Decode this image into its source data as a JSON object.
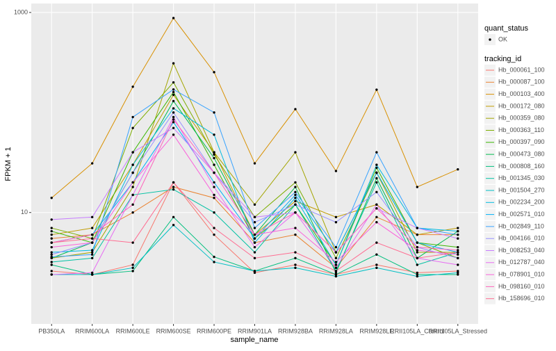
{
  "chart_data": {
    "type": "line",
    "x_label": "sample_name",
    "y_label": "FPKM + 1",
    "log_y": true,
    "grid": true,
    "categories": [
      "PB350LA",
      "RRIM600LA",
      "RRIM600LE",
      "RRIM600SE",
      "RRIM600PE",
      "RRIM901LA",
      "RRIM928BA",
      "RRIM928LA",
      "RRIM928LE",
      "RRII105LA_Control",
      "RRII105LA_Stressed"
    ],
    "ylim": [
      0.77,
      1230
    ],
    "yticks": [
      10,
      1000
    ],
    "shape_legend_title": "quant_status",
    "shape_legend_items": [
      "OK"
    ],
    "legend_title": "tracking_id",
    "series": [
      {
        "name": "Hb_000061_100",
        "color": "#F8766D",
        "values": [
          2.6,
          2.4,
          3.0,
          20,
          6,
          2.5,
          3,
          2.4,
          3,
          2.5,
          2.6
        ]
      },
      {
        "name": "Hb_000087_100",
        "color": "#EA8331",
        "values": [
          5.5,
          6,
          10,
          18,
          14,
          5,
          6,
          2.8,
          9,
          6,
          6
        ]
      },
      {
        "name": "Hb_000103_400",
        "color": "#D89000",
        "values": [
          14,
          31,
          181,
          879,
          253,
          31,
          108,
          26,
          169,
          18,
          27
        ]
      },
      {
        "name": "Hb_000172_080",
        "color": "#C09B00",
        "values": [
          6,
          7,
          30,
          150,
          40,
          6,
          13,
          9,
          12,
          6,
          7
        ]
      },
      {
        "name": "Hb_000359_080",
        "color": "#A3A500",
        "values": [
          3.5,
          4,
          18,
          310,
          40,
          12,
          40,
          4,
          25,
          4,
          4
        ]
      },
      {
        "name": "Hb_000363_110",
        "color": "#7CAE00",
        "values": [
          7,
          5.5,
          70,
          200,
          38,
          9,
          20,
          3.5,
          25,
          5,
          3.5
        ]
      },
      {
        "name": "Hb_000397_090",
        "color": "#39B600",
        "values": [
          6.5,
          5,
          40,
          160,
          30,
          5.5,
          12,
          3,
          28,
          5,
          4.5
        ]
      },
      {
        "name": "Hb_000473_080",
        "color": "#00BB4E",
        "values": [
          3.5,
          5,
          25,
          130,
          35,
          6,
          18,
          2.5,
          22,
          3.5,
          6.5
        ]
      },
      {
        "name": "Hb_000808_160",
        "color": "#00BF7D",
        "values": [
          3,
          2.4,
          2.6,
          9,
          3.6,
          2.6,
          3.5,
          2.4,
          3.8,
          2.4,
          2.4
        ]
      },
      {
        "name": "Hb_001345_030",
        "color": "#00C1A3",
        "values": [
          3.2,
          3.5,
          15,
          17,
          10,
          4,
          12,
          2.6,
          20,
          3,
          4
        ]
      },
      {
        "name": "Hb_001504_270",
        "color": "#00BFC4",
        "values": [
          2.4,
          2.4,
          2.8,
          7.5,
          3.2,
          2.6,
          2.8,
          2.3,
          2.8,
          2.3,
          2.5
        ]
      },
      {
        "name": "Hb_002234_200",
        "color": "#00BAE0",
        "values": [
          4,
          4.2,
          30,
          110,
          60,
          5,
          14,
          3,
          30,
          7,
          6.5
        ]
      },
      {
        "name": "Hb_002571_010",
        "color": "#00B0F6",
        "values": [
          5,
          6,
          20,
          80,
          20,
          5.5,
          15,
          4,
          25,
          5,
          4
        ]
      },
      {
        "name": "Hb_002849_110",
        "color": "#35A2FF",
        "values": [
          3.6,
          3.8,
          90,
          170,
          100,
          7,
          16,
          4.5,
          40,
          7,
          6
        ]
      },
      {
        "name": "Hb_004166_010",
        "color": "#9590FF",
        "values": [
          3.8,
          5,
          25,
          100,
          25,
          8,
          12,
          8,
          16,
          4.5,
          3.5
        ]
      },
      {
        "name": "Hb_008253_040",
        "color": "#C77CFF",
        "values": [
          8.5,
          9,
          40,
          70,
          25,
          9,
          10,
          4,
          11,
          7,
          5.5
        ]
      },
      {
        "name": "Hb_012787_040",
        "color": "#E76BF3",
        "values": [
          2.4,
          2.5,
          15,
          90,
          18,
          4.5,
          10,
          2.8,
          12,
          3.5,
          3
        ]
      },
      {
        "name": "Hb_078901_010",
        "color": "#FA62DB",
        "values": [
          4.5,
          5,
          20,
          60,
          15,
          6,
          7,
          3.2,
          8,
          4.2,
          3.8
        ]
      },
      {
        "name": "Hb_098160_010",
        "color": "#FF62BC",
        "values": [
          5,
          6,
          12,
          85,
          25,
          6,
          10,
          4,
          11,
          4.5,
          4.2
        ]
      },
      {
        "name": "Hb_158696_010",
        "color": "#FF6C91",
        "values": [
          5,
          5.5,
          5,
          20,
          7,
          3.5,
          4,
          2.6,
          5,
          3.5,
          4
        ]
      }
    ]
  }
}
